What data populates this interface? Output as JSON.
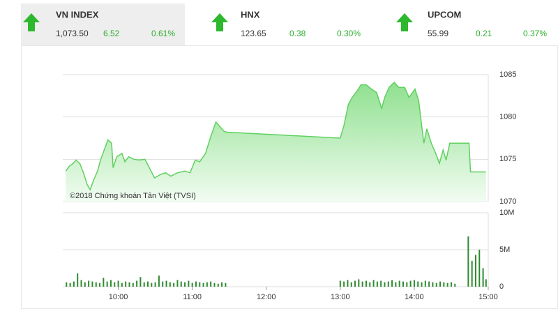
{
  "indices": [
    {
      "name": "VN INDEX",
      "value": "1,073.50",
      "change": "6.52",
      "percent": "0.61%"
    },
    {
      "name": "HNX",
      "value": "123.65",
      "change": "0.38",
      "percent": "0.30%"
    },
    {
      "name": "UPCOM",
      "value": "55.99",
      "change": "0.21",
      "percent": "0.37%"
    }
  ],
  "chart_data": [
    {
      "type": "area",
      "annotation": "©2018 Chứng khoán Tân Việt (TVSI)",
      "color": "#5fd05f",
      "xlim": [
        9.25,
        15
      ],
      "ylim": [
        1070,
        1085
      ],
      "yticks": [
        1070,
        1075,
        1080,
        1085
      ],
      "grid": true,
      "x": [
        9.29,
        9.34,
        9.39,
        9.43,
        9.48,
        9.53,
        9.58,
        9.62,
        9.67,
        9.72,
        9.76,
        9.81,
        9.86,
        9.91,
        9.93,
        9.98,
        10.05,
        10.09,
        10.14,
        10.21,
        10.28,
        10.36,
        10.42,
        10.49,
        10.57,
        10.64,
        10.71,
        10.8,
        10.9,
        10.97,
        11.04,
        11.1,
        11.18,
        11.25,
        11.32,
        11.36,
        11.43,
        11.47,
        13.0,
        13.05,
        13.11,
        13.16,
        13.23,
        13.28,
        13.35,
        13.42,
        13.49,
        13.56,
        13.6,
        13.66,
        13.73,
        13.79,
        13.87,
        13.93,
        14.01,
        14.06,
        14.1,
        14.13,
        14.17,
        14.23,
        14.29,
        14.34,
        14.39,
        14.43,
        14.48,
        14.62,
        14.74,
        14.76,
        14.97
      ],
      "values": [
        1073.6,
        1074.2,
        1074.5,
        1074.9,
        1074.5,
        1073.4,
        1072.0,
        1071.4,
        1072.6,
        1073.6,
        1074.9,
        1076.1,
        1077.3,
        1076.9,
        1074.0,
        1075.3,
        1075.7,
        1074.7,
        1075.3,
        1075.0,
        1074.9,
        1075.0,
        1074.0,
        1072.8,
        1073.2,
        1073.4,
        1073.0,
        1073.4,
        1073.6,
        1073.4,
        1074.9,
        1074.7,
        1075.7,
        1077.7,
        1079.4,
        1079.0,
        1078.3,
        1078.2,
        1077.5,
        1079.0,
        1081.5,
        1082.3,
        1083.1,
        1083.8,
        1083.8,
        1083.3,
        1082.9,
        1081.0,
        1082.3,
        1083.5,
        1084.1,
        1083.5,
        1083.5,
        1082.3,
        1083.3,
        1081.9,
        1079.0,
        1076.9,
        1078.6,
        1076.9,
        1075.7,
        1074.5,
        1076.1,
        1074.9,
        1076.9,
        1076.9,
        1076.9,
        1073.5,
        1073.5
      ]
    },
    {
      "type": "bar",
      "color": "#2e8b2e",
      "xlim": [
        9.25,
        15
      ],
      "ylim": [
        0,
        10000000
      ],
      "yticks": [
        0,
        {
          "value": 5000000,
          "label": "5M"
        },
        {
          "value": 10000000,
          "label": "10M"
        }
      ],
      "grid": true,
      "xticks": [
        {
          "value": 10,
          "label": "10:00"
        },
        {
          "value": 11,
          "label": "11:00"
        },
        {
          "value": 12,
          "label": "12:00"
        },
        {
          "value": 13,
          "label": "13:00"
        },
        {
          "value": 14,
          "label": "14:00"
        },
        {
          "value": 15,
          "label": "15:00"
        }
      ],
      "x": [
        9.3,
        9.35,
        9.4,
        9.45,
        9.5,
        9.55,
        9.6,
        9.65,
        9.7,
        9.75,
        9.8,
        9.85,
        9.9,
        9.95,
        10.0,
        10.05,
        10.1,
        10.15,
        10.2,
        10.25,
        10.3,
        10.35,
        10.4,
        10.45,
        10.5,
        10.55,
        10.6,
        10.65,
        10.7,
        10.75,
        10.8,
        10.85,
        10.9,
        10.95,
        11.0,
        11.05,
        11.1,
        11.15,
        11.2,
        11.25,
        11.3,
        11.35,
        11.4,
        11.45,
        13.0,
        13.05,
        13.1,
        13.15,
        13.2,
        13.25,
        13.3,
        13.35,
        13.4,
        13.45,
        13.5,
        13.55,
        13.6,
        13.65,
        13.7,
        13.75,
        13.8,
        13.85,
        13.9,
        13.95,
        14.0,
        14.05,
        14.1,
        14.15,
        14.2,
        14.25,
        14.3,
        14.35,
        14.4,
        14.45,
        14.5,
        14.55,
        14.73,
        14.78,
        14.83,
        14.88,
        14.93,
        14.97
      ],
      "values": [
        600000,
        500000,
        700000,
        1800000,
        900000,
        600000,
        800000,
        700000,
        600000,
        500000,
        1200000,
        700000,
        900000,
        600000,
        800000,
        500000,
        700000,
        600000,
        500000,
        800000,
        1300000,
        600000,
        700000,
        500000,
        600000,
        1500000,
        700000,
        800000,
        600000,
        500000,
        900000,
        700000,
        600000,
        800000,
        500000,
        700000,
        600000,
        500000,
        600000,
        700000,
        500000,
        400000,
        600000,
        500000,
        800000,
        700000,
        900000,
        600000,
        800000,
        1000000,
        700000,
        800000,
        600000,
        900000,
        700000,
        800000,
        600000,
        700000,
        900000,
        600000,
        800000,
        700000,
        600000,
        800000,
        900000,
        700000,
        600000,
        800000,
        700000,
        600000,
        500000,
        700000,
        600000,
        500000,
        600000,
        400000,
        6800000,
        3500000,
        4300000,
        5000000,
        2500000,
        1000000
      ]
    }
  ]
}
